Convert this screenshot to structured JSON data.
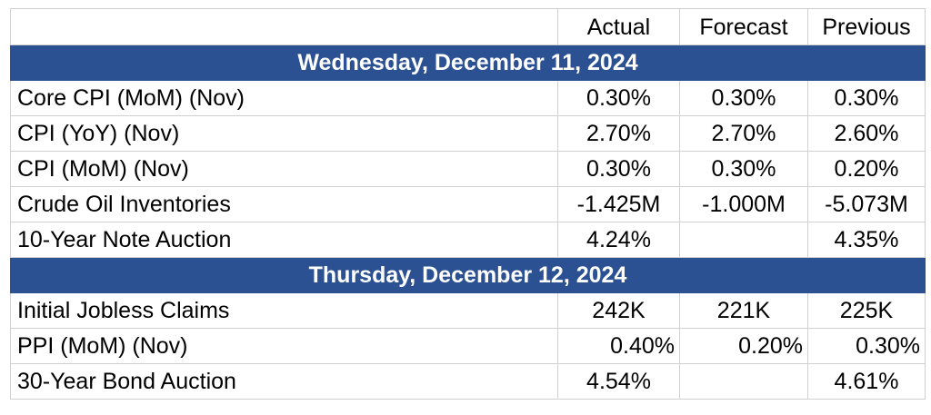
{
  "header": {
    "actual": "Actual",
    "forecast": "Forecast",
    "previous": "Previous"
  },
  "sections": [
    {
      "date": "Wednesday, December 11, 2024",
      "rows": [
        {
          "event": "Core CPI (MoM) (Nov)",
          "actual": "0.30%",
          "forecast": "0.30%",
          "previous": "0.30%"
        },
        {
          "event": "CPI (YoY) (Nov)",
          "actual": "2.70%",
          "forecast": "2.70%",
          "previous": "2.60%"
        },
        {
          "event": "CPI (MoM) (Nov)",
          "actual": "0.30%",
          "forecast": "0.30%",
          "previous": "0.20%"
        },
        {
          "event": "Crude Oil Inventories",
          "actual": "-1.425M",
          "forecast": "-1.000M",
          "previous": "-5.073M"
        },
        {
          "event": "10-Year Note Auction",
          "actual": "4.24%",
          "forecast": "",
          "previous": "4.35%"
        }
      ]
    },
    {
      "date": "Thursday, December 12, 2024",
      "rows": [
        {
          "event": "Initial Jobless Claims",
          "actual": "242K",
          "forecast": "221K",
          "previous": "225K"
        },
        {
          "event": "PPI (MoM) (Nov)",
          "actual": "0.40%",
          "forecast": "0.20%",
          "previous": "0.30%"
        },
        {
          "event": "30-Year Bond Auction",
          "actual": "4.54%",
          "forecast": "",
          "previous": "4.61%"
        }
      ]
    }
  ],
  "colors": {
    "date_band": "#2c5192",
    "grid": "#d0d0d0"
  }
}
